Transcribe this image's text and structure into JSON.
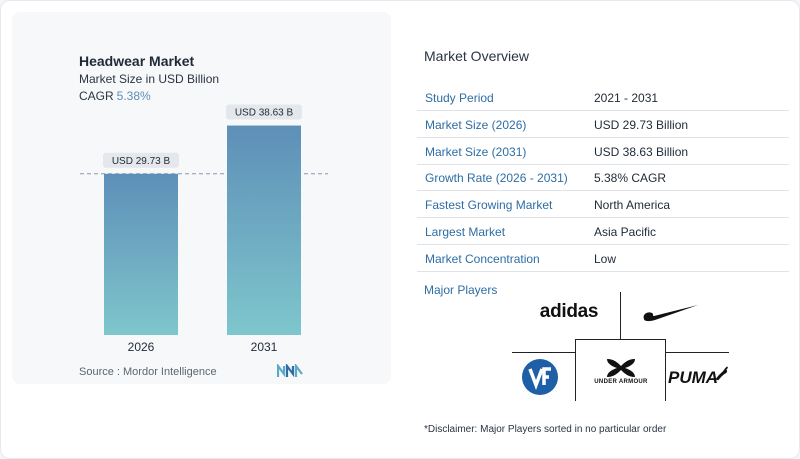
{
  "chart": {
    "title": "Headwear Market",
    "subtitle": "Market Size in USD Billion",
    "cagr_label": "CAGR",
    "cagr_value": "5.38%",
    "source": "Source :  Mordor Intelligence"
  },
  "chart_data": {
    "type": "bar",
    "title": "Headwear Market",
    "subtitle": "Market Size in USD Billion",
    "categories": [
      "2026",
      "2031"
    ],
    "values": [
      29.73,
      38.63
    ],
    "data_labels": [
      "USD 29.73 B",
      "USD 38.63 B"
    ],
    "ylim": [
      0,
      45
    ],
    "reference_line": 29.73,
    "grid": false,
    "colors": {
      "bar_top": "#5e8fb8",
      "bar_bottom": "#7ec6cc",
      "ref_line": "#8a99a8"
    }
  },
  "overview": {
    "title": "Market Overview",
    "rows": [
      {
        "label": "Study Period",
        "value": "2021 - 2031"
      },
      {
        "label": "Market Size (2026)",
        "value": "USD 29.73 Billion"
      },
      {
        "label": "Market Size (2031)",
        "value": "USD 38.63 Billion"
      },
      {
        "label": "Growth Rate (2026 - 2031)",
        "value": "5.38% CAGR"
      },
      {
        "label": "Fastest Growing Market",
        "value": "North America"
      },
      {
        "label": "Largest Market",
        "value": "Asia Pacific"
      },
      {
        "label": "Market Concentration",
        "value": "Low"
      }
    ]
  },
  "players": {
    "title": "Major Players",
    "logos": {
      "adidas": "adidas",
      "nike": "nike-swoosh-logo",
      "vf": "vf-logo",
      "under_armour": "UNDER ARMOUR",
      "puma": "PUMA"
    }
  },
  "disclaimer": "*Disclaimer: Major Players sorted in no particular order"
}
